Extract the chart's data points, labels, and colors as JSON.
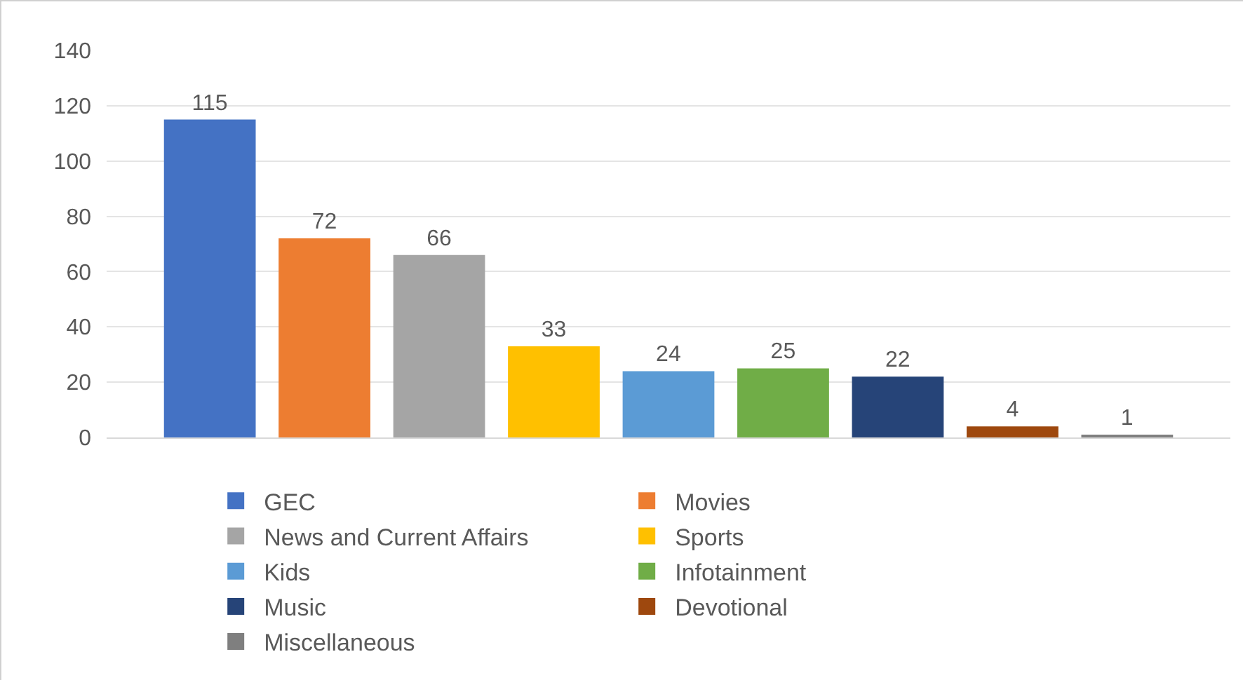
{
  "chart_data": {
    "type": "bar",
    "categories": [
      null,
      null,
      null,
      null,
      null,
      null,
      null,
      null,
      null
    ],
    "series": [
      {
        "name": "GEC",
        "color": "#4472c4",
        "values": [
          115,
          null,
          null,
          null,
          null,
          null,
          null,
          null,
          null
        ]
      },
      {
        "name": "Movies",
        "color": "#ed7d31",
        "values": [
          null,
          72,
          null,
          null,
          null,
          null,
          null,
          null,
          null
        ]
      },
      {
        "name": "News and Current Affairs",
        "color": "#a5a5a5",
        "values": [
          null,
          null,
          66,
          null,
          null,
          null,
          null,
          null,
          null
        ]
      },
      {
        "name": "Sports",
        "color": "#ffc000",
        "values": [
          null,
          null,
          null,
          33,
          null,
          null,
          null,
          null,
          null
        ]
      },
      {
        "name": "Kids",
        "color": "#5b9bd5",
        "values": [
          null,
          null,
          null,
          null,
          24,
          null,
          null,
          null,
          null
        ]
      },
      {
        "name": "Infotainment",
        "color": "#70ad47",
        "values": [
          null,
          null,
          null,
          null,
          null,
          25,
          null,
          null,
          null
        ]
      },
      {
        "name": "Music",
        "color": "#264478",
        "values": [
          null,
          null,
          null,
          null,
          null,
          null,
          22,
          null,
          null
        ]
      },
      {
        "name": "Devotional",
        "color": "#9e480e",
        "values": [
          null,
          null,
          null,
          null,
          null,
          null,
          null,
          4,
          null
        ]
      },
      {
        "name": "Miscellaneous",
        "color": "#7f7f7f",
        "values": [
          null,
          null,
          null,
          null,
          null,
          null,
          null,
          null,
          1
        ]
      }
    ],
    "ylim": [
      0,
      140
    ],
    "yticks": [
      0,
      20,
      40,
      60,
      80,
      100,
      120,
      140
    ],
    "grid": "y",
    "legend": "bottom",
    "data_labels": true
  }
}
